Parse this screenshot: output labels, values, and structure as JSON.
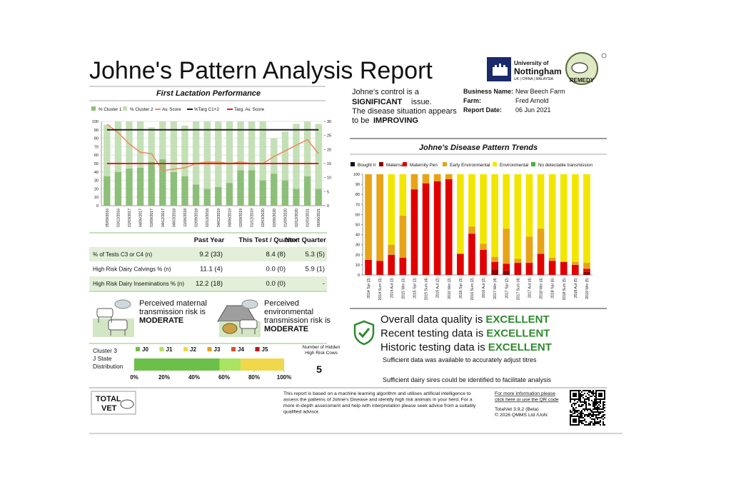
{
  "header": {
    "title": "Johne's Pattern Analysis Report",
    "university": [
      "University of",
      "Nottingham"
    ],
    "university_sub": "UK | CHINA | MALAYSIA",
    "remedy": "REMEDY"
  },
  "summary": {
    "line1": "Johne's control is a",
    "significant": "SIGNIFICANT",
    "issue": "issue.",
    "line3": "The disease situation appears",
    "line4": "to be",
    "improving": "IMPROVING"
  },
  "business": {
    "rows": [
      [
        "Business Name:",
        "New Beech Farm"
      ],
      [
        "Farm:",
        "Fred Arnold"
      ],
      [
        "Report Date:",
        "06 Jun 2021"
      ]
    ]
  },
  "chart_data": [
    {
      "type": "bar",
      "title": "First Lactation Performance",
      "stacked": true,
      "grid": true,
      "categories": [
        "05/09/2016",
        "03/12/2016",
        "01/03/2017",
        "04/06/2017",
        "03/09/2017",
        "04/12/2017",
        "04/03/2018",
        "11/06/2018",
        "02/09/2018",
        "02/12/2018",
        "04/03/2019",
        "04/06/2019",
        "02/09/2019",
        "01/12/2019",
        "02/03/2020",
        "02/06/2020",
        "01/09/2020",
        "02/12/2020",
        "01/03/2021",
        "06/06/2021"
      ],
      "ylim": [
        0,
        100
      ],
      "yticks": [
        0,
        10,
        20,
        30,
        40,
        50,
        60,
        70,
        80,
        90,
        100
      ],
      "y2lim": [
        0,
        30
      ],
      "y2ticks": [
        0,
        5,
        10,
        15,
        20,
        25,
        30
      ],
      "series": [
        {
          "name": "% Cluster 1",
          "color": "#8cbf78",
          "values": [
            35,
            40,
            44,
            45,
            52,
            55,
            40,
            35,
            25,
            20,
            22,
            27,
            42,
            42,
            30,
            38,
            30,
            20,
            35,
            20
          ]
        },
        {
          "name": "% Cluster 2",
          "color": "#c4e0b6",
          "values": [
            61,
            60,
            56,
            55,
            41,
            45,
            60,
            60,
            75,
            80,
            78,
            73,
            58,
            58,
            70,
            42,
            58,
            77,
            65,
            77
          ]
        },
        {
          "name": "Av. Score",
          "color": "#f08a5d",
          "mark": "line",
          "axis": "y2",
          "values": [
            29,
            26,
            22,
            19,
            18.5,
            12.5,
            13,
            13.5,
            15,
            15.5,
            15.5,
            15,
            15.5,
            15,
            15,
            17.5,
            19.5,
            21.5,
            23.5,
            18.5
          ]
        },
        {
          "name": "%Targ C1+2",
          "color": "#222222",
          "mark": "line",
          "values": [
            90,
            90,
            90,
            90,
            90,
            90,
            90,
            90,
            90,
            90,
            90,
            90,
            90,
            90,
            90,
            90,
            90,
            90,
            90,
            90
          ]
        },
        {
          "name": "Targ. Av. Score",
          "color": "#e02020",
          "mark": "line",
          "axis": "y2",
          "values": [
            15,
            15,
            15,
            15,
            15,
            15,
            15,
            15,
            15,
            15,
            15,
            15,
            15,
            15,
            15,
            15,
            15,
            15,
            15,
            15
          ]
        }
      ]
    },
    {
      "type": "bar",
      "title": "Johne's Disease Pattern Trends",
      "stacked": true,
      "grid": false,
      "categories": [
        "2014 Spr (3)",
        "2014 Sum (3)",
        "2014 Aut (3)",
        "2015 Win (3)",
        "2015 Spr (3)",
        "2015 Sum (4)",
        "2015 Aut (2)",
        "2016 Win (2)",
        "2016 Spr (3)",
        "2016 Sum (2)",
        "2016 Aut (2)",
        "2017 Win (4)",
        "2017 Spr (2)",
        "2017 Sum (4)",
        "2017 Aut (4)",
        "2018 Win (4)",
        "2018 Spr (6)",
        "2018 Sum (5)",
        "2018 Aut (5)",
        "2019 Win (5)"
      ],
      "ylim": [
        0,
        100
      ],
      "yticks": [
        0,
        10,
        20,
        30,
        40,
        50,
        60,
        70,
        80,
        90,
        100
      ],
      "series": [
        {
          "name": "Bought Ir",
          "color": "#111111",
          "values": [
            0,
            0,
            0,
            0,
            0,
            0,
            0,
            0,
            0,
            0,
            0,
            0,
            0,
            0,
            0,
            0,
            0,
            0,
            0,
            0
          ]
        },
        {
          "name": "Maternal",
          "color": "#8b0000",
          "values": [
            0,
            0,
            0,
            0,
            0,
            0,
            0,
            0,
            0,
            0,
            0,
            5,
            4,
            0,
            0,
            0,
            0,
            0,
            0,
            3
          ]
        },
        {
          "name": "Maternity Pen",
          "color": "#e00000",
          "values": [
            15,
            14,
            20,
            17,
            85,
            91,
            93,
            95,
            21,
            41,
            25,
            8,
            7,
            12,
            12,
            21,
            14,
            13,
            10,
            3
          ]
        },
        {
          "name": "Early Environmental",
          "color": "#e8a317",
          "values": [
            85,
            86,
            10,
            42,
            15,
            9,
            7,
            5,
            0,
            7,
            6,
            5,
            35,
            4,
            26,
            25,
            3,
            0,
            3,
            6
          ]
        },
        {
          "name": "Environmental",
          "color": "#f2e600",
          "values": [
            0,
            0,
            70,
            41,
            0,
            0,
            0,
            0,
            79,
            52,
            69,
            82,
            54,
            84,
            62,
            54,
            83,
            87,
            87,
            88
          ]
        },
        {
          "name": "No detectable transmission",
          "color": "#4caf3a",
          "values": [
            0,
            0,
            0,
            0,
            0,
            0,
            0,
            0,
            0,
            0,
            0,
            0,
            0,
            0,
            0,
            0,
            0,
            0,
            0,
            0
          ]
        }
      ]
    },
    {
      "type": "bar",
      "orientation": "horizontal",
      "stacked": true,
      "title": [
        "Cluster 3",
        "J State",
        "Distribution"
      ],
      "xlim": [
        0,
        100
      ],
      "xticks": [
        {
          "value": 0,
          "label": "0%"
        },
        {
          "value": 20,
          "label": "20%"
        },
        {
          "value": 40,
          "label": "40%"
        },
        {
          "value": 60,
          "label": "60%"
        },
        {
          "value": 80,
          "label": "80%"
        },
        {
          "value": 100,
          "label": "100%"
        }
      ],
      "series": [
        {
          "name": "J0",
          "color": "#6cc04a",
          "values": [
            57
          ]
        },
        {
          "name": "J1",
          "color": "#a9e35f",
          "values": [
            14
          ]
        },
        {
          "name": "J2",
          "color": "#f0d84a",
          "values": [
            29
          ]
        },
        {
          "name": "J3",
          "color": "#e8a020",
          "values": [
            0
          ]
        },
        {
          "name": "J4",
          "color": "#e0502a",
          "values": [
            0
          ]
        },
        {
          "name": "J5",
          "color": "#c0101a",
          "values": [
            0
          ]
        }
      ]
    }
  ],
  "hidden_cows": {
    "label": [
      "Number of Hidden",
      "High Risk Cows"
    ],
    "value": 5
  },
  "table": {
    "headers": [
      "Past Year",
      "This Test / Quarter",
      "Next Quarter"
    ],
    "rows": [
      [
        "% of Tests C3 or C4 (n)",
        "9.2 (33)",
        "8.4 (8)",
        "5.3 (5)"
      ],
      [
        "High Risk Dairy Calvings % (n)",
        "11.1 (4)",
        "0.0 (0)",
        "5.9 (1)"
      ],
      [
        "High Risk Dairy Inseminations % (n)",
        "12.2 (18)",
        "0.0 (0)",
        "-"
      ]
    ]
  },
  "risk": [
    {
      "lines": [
        "Perceived maternal",
        "transmission risk is"
      ],
      "level": "MODERATE"
    },
    {
      "lines": [
        "Perceived",
        "environmental",
        "transmission risk is"
      ],
      "level": "MODERATE"
    }
  ],
  "quality": {
    "lines": [
      [
        "Overall data quality is",
        "EXCELLENT"
      ],
      [
        "Recent testing data is",
        "EXCELLENT"
      ],
      [
        "Historic testing data is",
        "EXCELLENT"
      ]
    ],
    "notes": [
      "Sufficient data was available to accurately adjust titres",
      "Sufficient dairy sires could be identified to facilitate analysis"
    ]
  },
  "footer": {
    "logo": [
      "TOTAL",
      "VET"
    ],
    "disclaimer": [
      "This report is based on a machine learning algorithm and utilises artificial intelligence to",
      "assess the patterns of Johne's Disease and identify high risk animals in your herd. For a",
      "more in-depth assessment and help with interpretation please seek advice from a suitably",
      "qualified advisor."
    ],
    "link": [
      "For more information please",
      "click here or use the QR code"
    ],
    "version": "TotalVet 3.9.2 (Beta)",
    "copyright": "© 2026 QMMS Ltd /UoN"
  }
}
